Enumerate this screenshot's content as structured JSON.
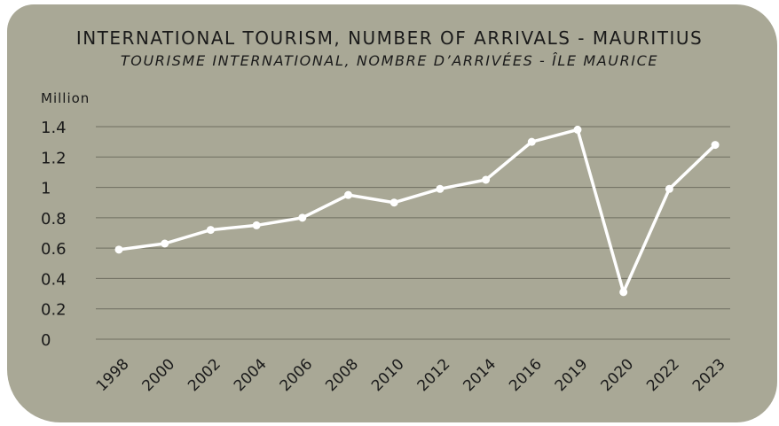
{
  "chart_data": {
    "type": "line",
    "title": "INTERNATIONAL TOURISM, NUMBER OF ARRIVALS - MAURITIUS",
    "subtitle": "TOURISME INTERNATIONAL, NOMBRE D’ARRIVÉES - ÎLE MAURICE",
    "ylabel": "Million",
    "xlabel": "",
    "ylim": [
      0,
      1.4
    ],
    "yticks": [
      "0",
      "0.2",
      "0.4",
      "0.6",
      "0.8",
      "1",
      "1.2",
      "1.4"
    ],
    "grid": true,
    "categories": [
      "1998",
      "2000",
      "2002",
      "2004",
      "2006",
      "2008",
      "2010",
      "2012",
      "2014",
      "2016",
      "2019",
      "2020",
      "2022",
      "2023"
    ],
    "values": [
      0.59,
      0.63,
      0.72,
      0.75,
      0.8,
      0.95,
      0.9,
      0.99,
      1.05,
      1.3,
      1.38,
      0.31,
      0.99,
      1.28
    ],
    "colors": {
      "background": "#a9a896",
      "line": "#ffffff",
      "grid": "#6f6e60",
      "text": "#1a1a1a"
    }
  }
}
